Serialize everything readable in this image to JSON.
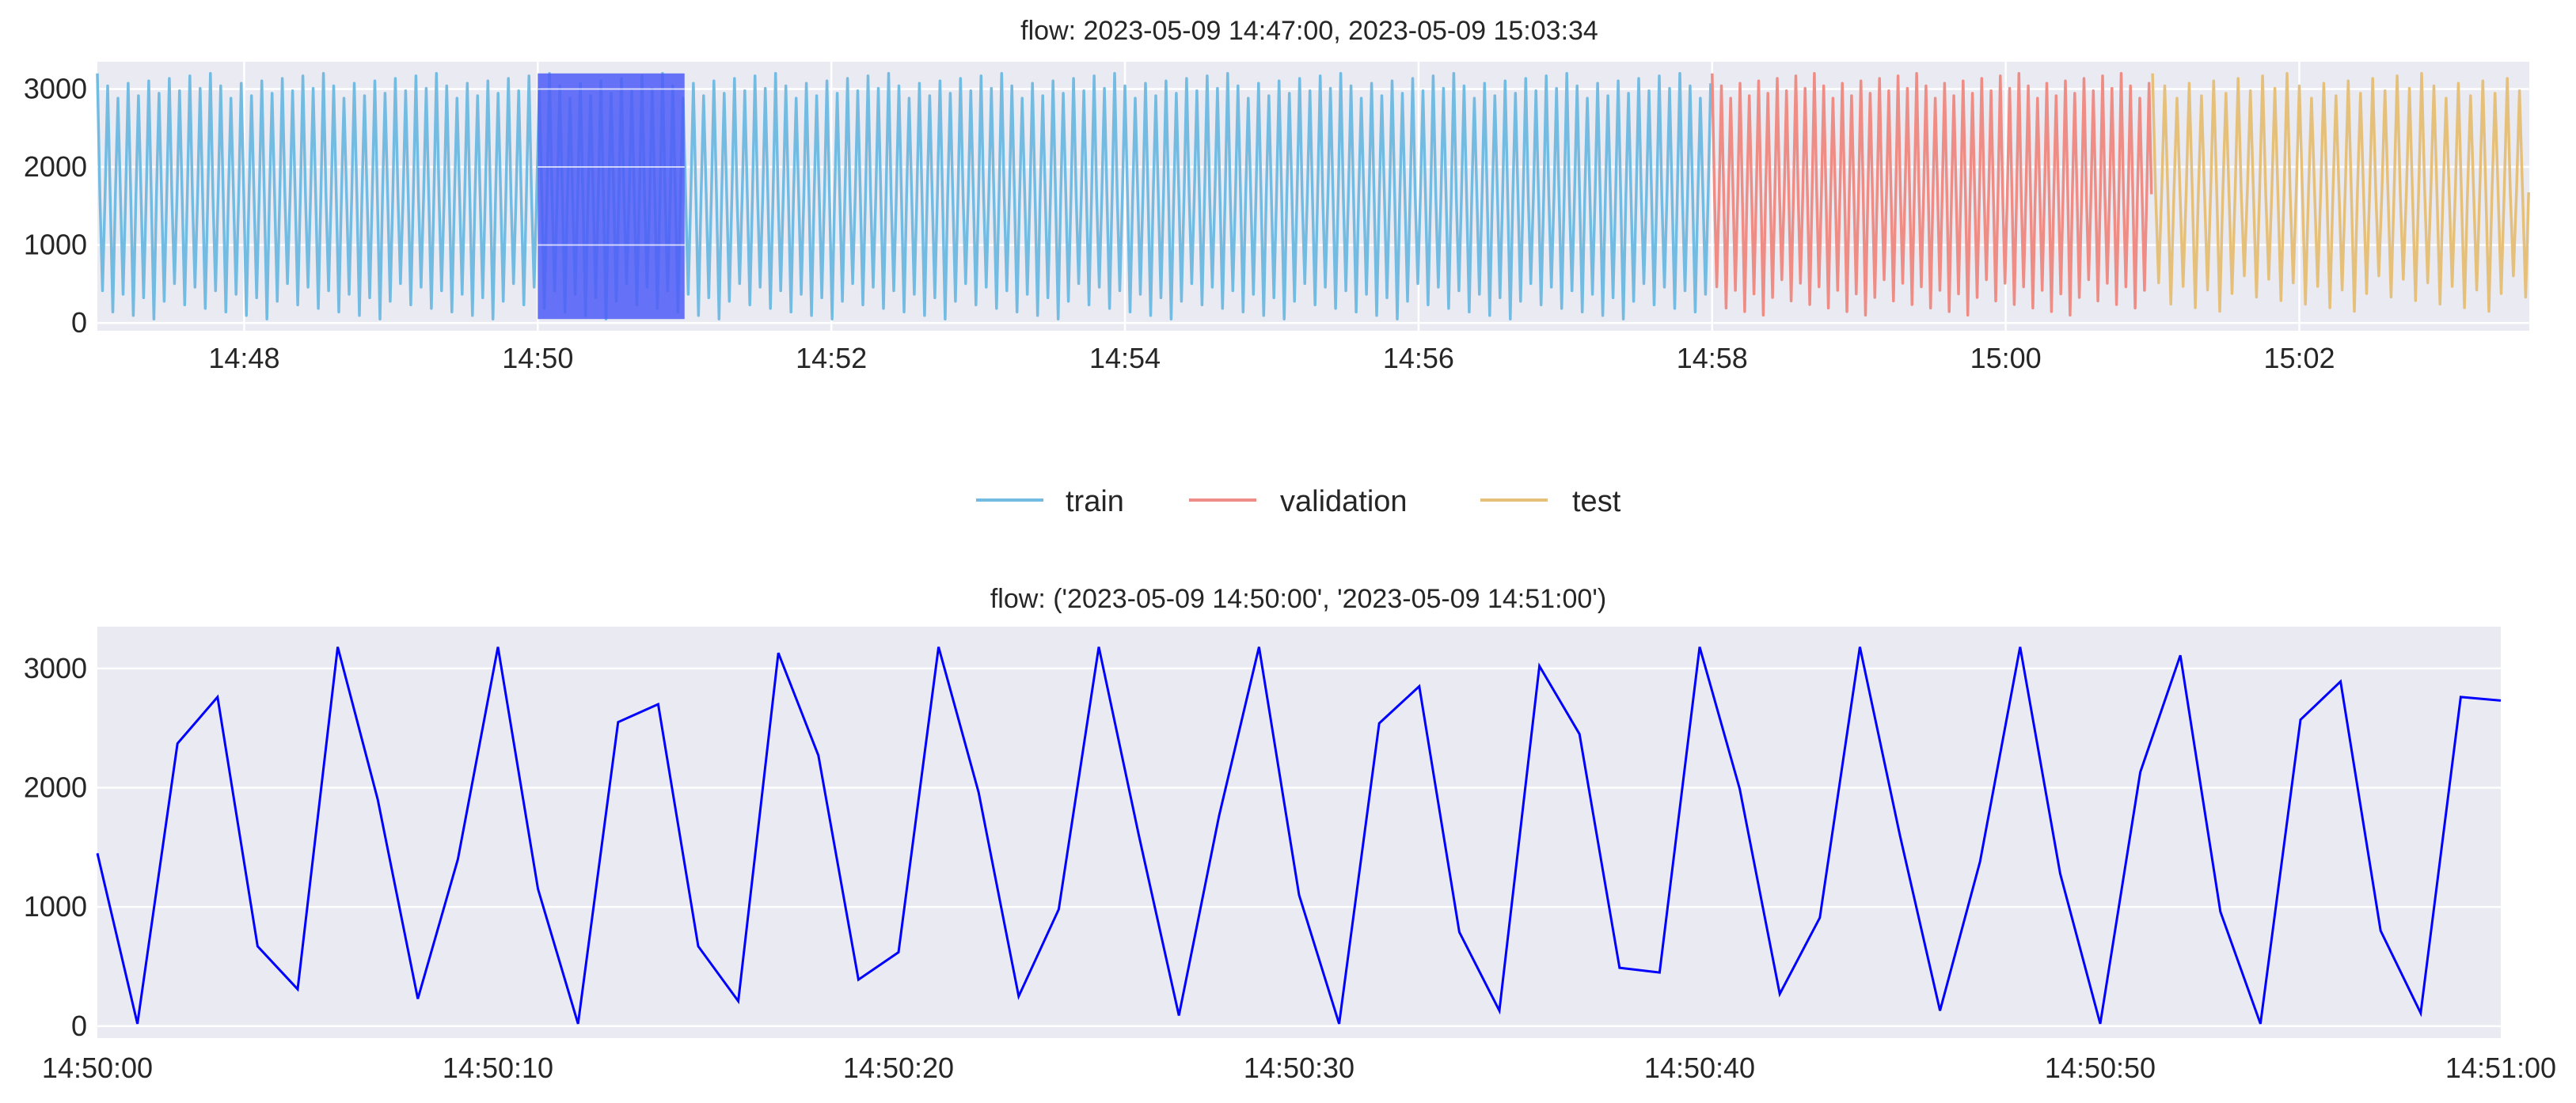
{
  "charts": [
    {
      "type": "line",
      "title": "flow: 2023-05-09 14:47:00, 2023-05-09 15:03:34",
      "x_range": [
        "2023-05-09 14:47:00",
        "2023-05-09 15:03:34"
      ],
      "ylim": [
        -100,
        3350
      ],
      "yticks": [
        0,
        1000,
        2000,
        3000
      ],
      "xticks": [
        "14:48",
        "14:50",
        "14:52",
        "14:54",
        "14:56",
        "14:58",
        "15:00",
        "15:02"
      ],
      "grid": true,
      "legend_placement": "below",
      "series": [
        {
          "name": "train",
          "color": "#74bbe2",
          "x_range": [
            "2023-05-09 14:47:00",
            "2023-05-09 14:58:00"
          ],
          "y_min": 50,
          "y_max": 3200,
          "period_s": 4.2
        },
        {
          "name": "validation",
          "color": "#ee8d85",
          "x_range": [
            "2023-05-09 14:58:00",
            "2023-05-09 15:01:00"
          ],
          "y_min": 100,
          "y_max": 3200,
          "period_s": 3.8
        },
        {
          "name": "test",
          "color": "#e5c07b",
          "x_range": [
            "2023-05-09 15:01:00",
            "2023-05-09 15:03:34"
          ],
          "y_min": 150,
          "y_max": 3200,
          "period_s": 5.0
        }
      ],
      "highlight": {
        "x_range": [
          "2023-05-09 14:50:00",
          "2023-05-09 14:51:00"
        ],
        "color": "#4d5cf7"
      }
    },
    {
      "type": "line",
      "title": "flow: ('2023-05-09 14:50:00', '2023-05-09 14:51:00')",
      "x_range": [
        "2023-05-09 14:50:00",
        "2023-05-09 14:51:00"
      ],
      "ylim": [
        -100,
        3350
      ],
      "yticks": [
        0,
        1000,
        2000,
        3000
      ],
      "xticks": [
        "14:50:00",
        "14:50:10",
        "14:50:20",
        "14:50:30",
        "14:50:40",
        "14:50:50",
        "14:51:00"
      ],
      "grid": true,
      "series": [
        {
          "color": "#0000ff",
          "x_seconds": [
            0,
            1,
            2,
            3,
            4,
            5,
            6,
            7,
            8,
            9,
            10,
            11,
            12,
            13,
            14,
            15,
            16,
            17,
            18,
            19,
            20,
            21,
            22,
            23,
            24,
            25,
            26,
            27,
            28,
            29,
            30,
            31,
            32,
            33,
            34,
            35,
            36,
            37,
            38,
            39,
            40,
            41,
            42,
            43,
            44,
            45,
            46,
            47,
            48,
            49,
            50,
            51,
            52,
            53,
            54,
            55,
            56,
            57,
            58,
            59,
            60
          ],
          "values": [
            1450,
            20,
            2370,
            2760,
            670,
            310,
            3180,
            1900,
            230,
            1400,
            3180,
            1150,
            20,
            2550,
            2700,
            670,
            210,
            3130,
            2270,
            390,
            620,
            3180,
            1960,
            250,
            980,
            3180,
            1600,
            90,
            1760,
            3180,
            1100,
            20,
            2540,
            2850,
            790,
            130,
            3020,
            2450,
            490,
            450,
            3180,
            1990,
            270,
            910,
            3180,
            1600,
            130,
            1380,
            3180,
            1280,
            20,
            2130,
            3110,
            960,
            20,
            2570,
            2890,
            800,
            110,
            2760,
            2730
          ]
        }
      ]
    }
  ]
}
